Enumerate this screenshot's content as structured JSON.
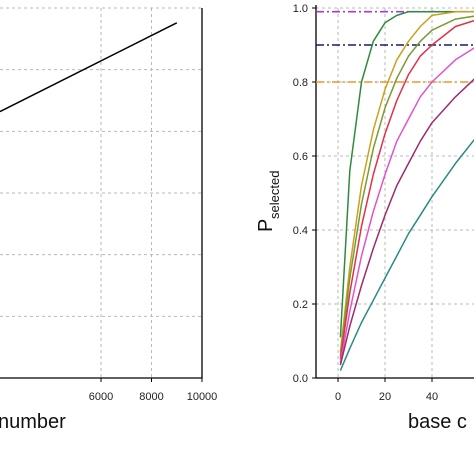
{
  "chart_data": [
    {
      "type": "line",
      "xlabel": "number",
      "x_ticks": [
        "6000",
        "8000",
        "10000"
      ],
      "xlim": [
        2000,
        10000
      ],
      "grid": true,
      "series": [
        {
          "x": [
            2000,
            9000
          ],
          "y": [
            0.72,
            0.96
          ],
          "color": "#000000"
        }
      ]
    },
    {
      "type": "line",
      "xlabel": "base c",
      "ylabel": "P",
      "ylabel_sub": "selected",
      "x_ticks": [
        "0",
        "20",
        "40"
      ],
      "y_ticks": [
        "0.0",
        "0.2",
        "0.4",
        "0.6",
        "0.8",
        "1.0"
      ],
      "xlim": [
        -9,
        60
      ],
      "ylim": [
        0,
        1
      ],
      "grid": true,
      "reference_lines": [
        {
          "y": 0.99,
          "color": "#9b3fd6",
          "style": "dash-dot"
        },
        {
          "y": 0.9,
          "color": "#1a1a66",
          "style": "dash-dot"
        },
        {
          "y": 0.8,
          "color": "#f0962a",
          "style": "dash-dot"
        }
      ],
      "series": [
        {
          "color": "#2e8b3e",
          "x": [
            1,
            5,
            10,
            15,
            20,
            25,
            30,
            35,
            40,
            50,
            60
          ],
          "y": [
            0.11,
            0.56,
            0.8,
            0.91,
            0.96,
            0.98,
            0.99,
            0.99,
            0.99,
            0.99,
            0.99
          ]
        },
        {
          "color": "#c8a21c",
          "x": [
            1,
            5,
            10,
            15,
            20,
            25,
            30,
            35,
            40,
            50,
            60
          ],
          "y": [
            0.07,
            0.3,
            0.52,
            0.67,
            0.78,
            0.86,
            0.91,
            0.95,
            0.98,
            0.99,
            0.99
          ]
        },
        {
          "color": "#7a9a34",
          "x": [
            1,
            5,
            10,
            15,
            20,
            25,
            30,
            35,
            40,
            50,
            60
          ],
          "y": [
            0.06,
            0.27,
            0.47,
            0.62,
            0.73,
            0.81,
            0.87,
            0.91,
            0.94,
            0.97,
            0.98
          ]
        },
        {
          "color": "#e0304a",
          "x": [
            1,
            5,
            10,
            15,
            20,
            25,
            30,
            35,
            40,
            50,
            60
          ],
          "y": [
            0.05,
            0.23,
            0.41,
            0.55,
            0.66,
            0.75,
            0.82,
            0.87,
            0.9,
            0.95,
            0.97
          ]
        },
        {
          "color": "#e054c8",
          "x": [
            1,
            5,
            10,
            15,
            20,
            25,
            30,
            35,
            40,
            50,
            60
          ],
          "y": [
            0.04,
            0.18,
            0.33,
            0.45,
            0.55,
            0.64,
            0.7,
            0.76,
            0.8,
            0.86,
            0.9
          ]
        },
        {
          "color": "#a02a6e",
          "x": [
            1,
            5,
            10,
            15,
            20,
            25,
            30,
            35,
            40,
            50,
            60
          ],
          "y": [
            0.035,
            0.14,
            0.25,
            0.35,
            0.44,
            0.52,
            0.58,
            0.64,
            0.69,
            0.76,
            0.82
          ]
        },
        {
          "color": "#2a8a84",
          "x": [
            1,
            5,
            10,
            15,
            20,
            25,
            30,
            35,
            40,
            50,
            60
          ],
          "y": [
            0.02,
            0.08,
            0.15,
            0.21,
            0.27,
            0.33,
            0.39,
            0.44,
            0.49,
            0.58,
            0.66
          ]
        }
      ]
    }
  ]
}
